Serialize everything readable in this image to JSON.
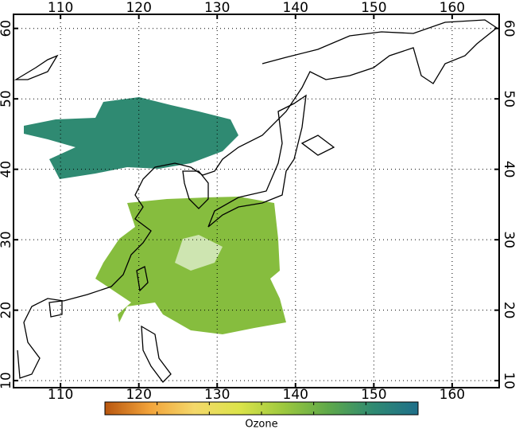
{
  "chart_data": {
    "type": "map",
    "xlim": [
      104,
      166
    ],
    "ylim": [
      9,
      62
    ],
    "xticks": [
      110,
      120,
      130,
      140,
      150,
      160
    ],
    "yticks": [
      10,
      20,
      30,
      40,
      50,
      60
    ],
    "grid": true,
    "colorbar_label": "Ozone",
    "colormap": [
      "#b8560f",
      "#f2a33a",
      "#f4d86a",
      "#dce44a",
      "#9cc83e",
      "#5ea84a",
      "#2f8a72",
      "#1f6f8a"
    ]
  }
}
